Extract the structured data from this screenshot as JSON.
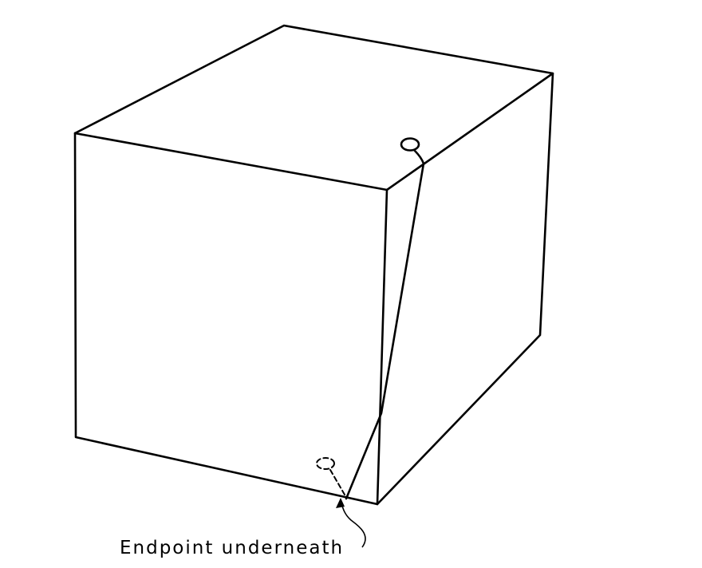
{
  "annotation": {
    "text": "Endpoint underneath"
  }
}
